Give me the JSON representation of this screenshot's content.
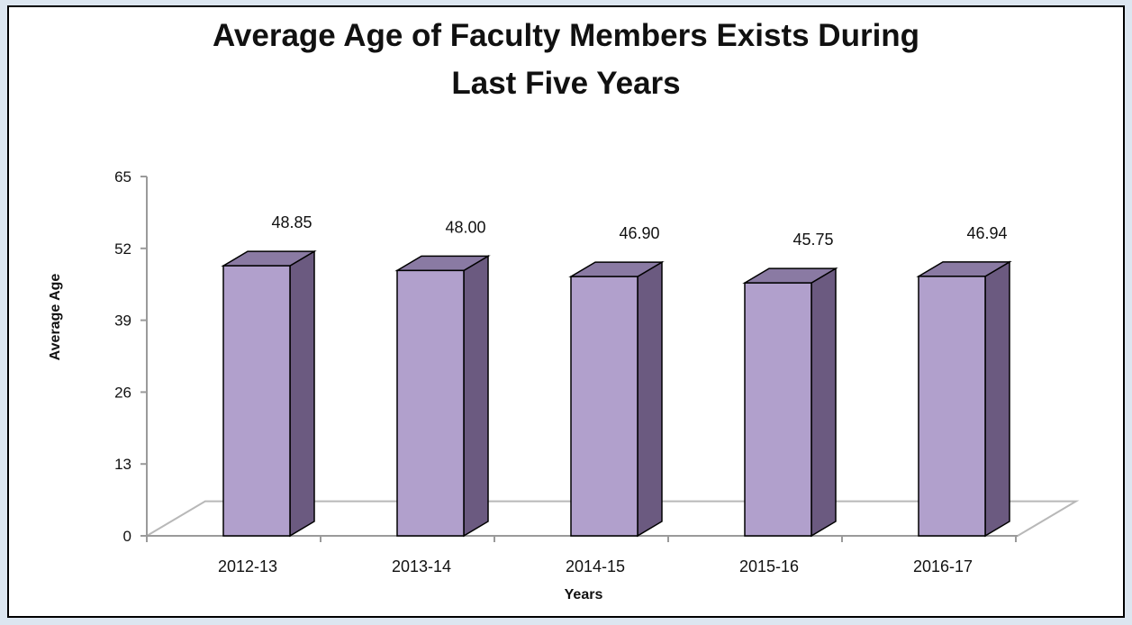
{
  "chart_data": {
    "type": "bar",
    "title_lines": [
      "Average Age of Faculty Members Exists During",
      "Last Five Years"
    ],
    "xlabel": "Years",
    "ylabel": "Average Age",
    "ylim": [
      0,
      65
    ],
    "yticks": [
      0,
      13,
      26,
      39,
      52,
      65
    ],
    "categories": [
      "2012-13",
      "2013-14",
      "2014-15",
      "2015-16",
      "2016-17"
    ],
    "values": [
      48.85,
      48.0,
      46.9,
      45.75,
      46.94
    ],
    "value_labels": [
      "48.85",
      "48.00",
      "46.90",
      "45.75",
      "46.94"
    ],
    "grid": false,
    "legend": "none",
    "style": "3d-column",
    "colors": {
      "bar_front": "#b1a0cc",
      "bar_side": "#6b5a80",
      "bar_top": "#8a7aa3",
      "bar_edge": "#000000"
    }
  }
}
